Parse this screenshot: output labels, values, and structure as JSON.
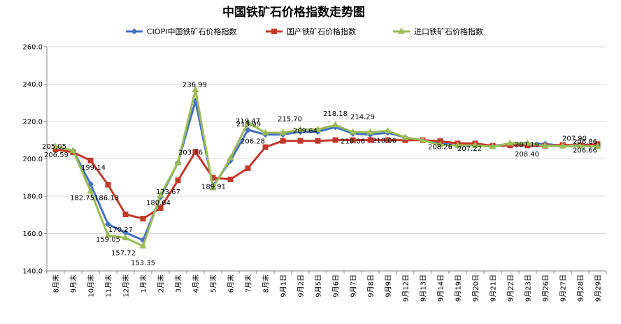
{
  "chart_data": {
    "type": "line",
    "title": "中国铁矿石价格指数走势图",
    "categories": [
      "8月末",
      "9月末",
      "10月末",
      "11月末",
      "12月末",
      "1月末",
      "2月末",
      "3月末",
      "4月末",
      "5月末",
      "6月末",
      "7月末",
      "8月末",
      "9月1日",
      "9月2日",
      "9月5日",
      "9月6日",
      "9月7日",
      "9月8日",
      "9月9日",
      "9月12日",
      "9月13日",
      "9月14日",
      "9月19日",
      "9月20日",
      "9月21日",
      "9月22日",
      "9月23日",
      "9月26日",
      "9月27日",
      "9月28日",
      "9月29日"
    ],
    "ylim": [
      140,
      260
    ],
    "yticks": [
      "140.0",
      "160.0",
      "180.0",
      "200.0",
      "220.0",
      "240.0",
      "260.0"
    ],
    "legend_position": "top",
    "series": [
      {
        "name": "CIOPI中国铁矿石价格指数",
        "color": "#4472C4",
        "marker": "diamond",
        "values": [
          206.0,
          204.5,
          186.5,
          165.0,
          160.5,
          156.5,
          179.5,
          198.0,
          231.0,
          185.5,
          199.0,
          215.5,
          213.0,
          213.0,
          214.5,
          214.5,
          217.0,
          213.5,
          213.0,
          214.0,
          211.5,
          210.0,
          208.5,
          207.0,
          207.5,
          207.0,
          208.0,
          208.0,
          208.0,
          207.0,
          207.5,
          207.0
        ]
      },
      {
        "name": "国产铁矿石价格指数",
        "color": "#C0392B",
        "marker": "square",
        "values": [
          205.05,
          203.5,
          199.14,
          186.13,
          170.27,
          168.0,
          173.67,
          188.5,
          203.76,
          189.91,
          189.0,
          195.0,
          206.28,
          209.64,
          209.64,
          209.64,
          210.06,
          210.06,
          210.06,
          210.06,
          210.0,
          210.0,
          209.5,
          208.26,
          208.26,
          207.0,
          207.19,
          207.19,
          207.0,
          207.5,
          207.19,
          207.9
        ]
      },
      {
        "name": "进口铁矿石价格指数",
        "color": "#9BBB59",
        "marker": "triangle",
        "values": [
          206.59,
          204.5,
          182.75,
          159.05,
          157.72,
          153.35,
          180.64,
          198.0,
          236.99,
          184.5,
          200.5,
          219.47,
          213.99,
          213.99,
          215.7,
          215.7,
          218.18,
          214.29,
          214.29,
          215.0,
          211.5,
          210.0,
          207.5,
          207.22,
          207.22,
          206.5,
          208.4,
          208.4,
          207.0,
          206.86,
          206.86,
          206.66
        ]
      }
    ],
    "annotations": [
      {
        "text": "205.05"
      },
      {
        "text": "206.59"
      },
      {
        "text": "199.14"
      },
      {
        "text": "182.75"
      },
      {
        "text": "186.13"
      },
      {
        "text": "159.05"
      },
      {
        "text": "170.27"
      },
      {
        "text": "157.72"
      },
      {
        "text": "153.35"
      },
      {
        "text": "180.64"
      },
      {
        "text": "173.67"
      },
      {
        "text": "236.99"
      },
      {
        "text": "203.76"
      },
      {
        "text": "189.91"
      },
      {
        "text": "219.47"
      },
      {
        "text": "213.99"
      },
      {
        "text": "206.28"
      },
      {
        "text": "215.70"
      },
      {
        "text": "209.64"
      },
      {
        "text": "218.18"
      },
      {
        "text": "214.29"
      },
      {
        "text": "210.06"
      },
      {
        "text": "210.06"
      },
      {
        "text": "208.26"
      },
      {
        "text": "207.22"
      },
      {
        "text": "208.40"
      },
      {
        "text": "207.19"
      },
      {
        "text": "207.90"
      },
      {
        "text": "206.86"
      },
      {
        "text": "206.66"
      }
    ]
  }
}
